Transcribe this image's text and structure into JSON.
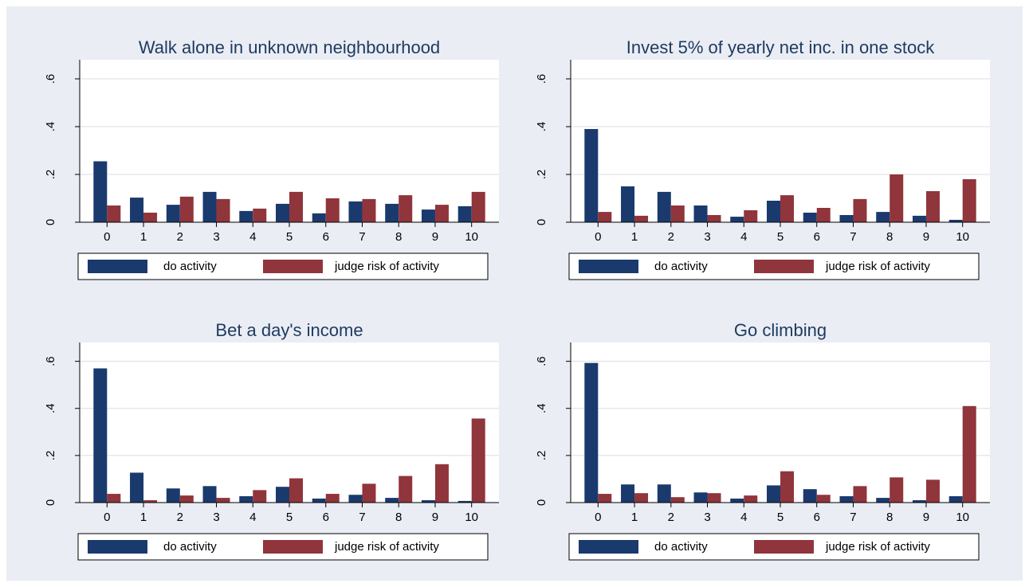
{
  "chart_data": [
    {
      "type": "bar",
      "title": "Walk alone in unknown neighbourhood",
      "categories": [
        "0",
        "1",
        "2",
        "3",
        "4",
        "5",
        "6",
        "7",
        "8",
        "9",
        "10"
      ],
      "series": [
        {
          "name": "do activity",
          "color": "#1a3a6e",
          "values": [
            0.255,
            0.103,
            0.073,
            0.127,
            0.047,
            0.077,
            0.037,
            0.087,
            0.077,
            0.053,
            0.067
          ]
        },
        {
          "name": "judge risk of activity",
          "color": "#90353b",
          "values": [
            0.07,
            0.04,
            0.107,
            0.097,
            0.057,
            0.127,
            0.1,
            0.097,
            0.113,
            0.073,
            0.127
          ]
        }
      ],
      "ylim": [
        0,
        0.68
      ],
      "yticks": [
        0,
        {
          "value": 0.2,
          "label": ".2"
        },
        {
          "value": 0.4,
          "label": ".4"
        },
        {
          "value": 0.6,
          "label": ".6"
        }
      ],
      "grid": true,
      "legend": "bottom"
    },
    {
      "type": "bar",
      "title": "Invest 5% of yearly net inc. in one stock",
      "categories": [
        "0",
        "1",
        "2",
        "3",
        "4",
        "5",
        "6",
        "7",
        "8",
        "9",
        "10"
      ],
      "series": [
        {
          "name": "do activity",
          "color": "#1a3a6e",
          "values": [
            0.39,
            0.15,
            0.127,
            0.07,
            0.023,
            0.09,
            0.04,
            0.03,
            0.043,
            0.027,
            0.01
          ]
        },
        {
          "name": "judge risk of activity",
          "color": "#90353b",
          "values": [
            0.043,
            0.027,
            0.07,
            0.03,
            0.05,
            0.113,
            0.06,
            0.097,
            0.2,
            0.13,
            0.18
          ]
        }
      ],
      "ylim": [
        0,
        0.68
      ],
      "yticks": [
        0,
        {
          "value": 0.2,
          "label": ".2"
        },
        {
          "value": 0.4,
          "label": ".4"
        },
        {
          "value": 0.6,
          "label": ".6"
        }
      ],
      "grid": true,
      "legend": "bottom"
    },
    {
      "type": "bar",
      "title": "Bet a day's income",
      "categories": [
        "0",
        "1",
        "2",
        "3",
        "4",
        "5",
        "6",
        "7",
        "8",
        "9",
        "10"
      ],
      "series": [
        {
          "name": "do activity",
          "color": "#1a3a6e",
          "values": [
            0.57,
            0.127,
            0.06,
            0.07,
            0.027,
            0.067,
            0.017,
            0.033,
            0.02,
            0.01,
            0.007
          ]
        },
        {
          "name": "judge risk of activity",
          "color": "#90353b",
          "values": [
            0.037,
            0.01,
            0.03,
            0.02,
            0.053,
            0.103,
            0.037,
            0.08,
            0.113,
            0.163,
            0.357
          ]
        }
      ],
      "ylim": [
        0,
        0.68
      ],
      "yticks": [
        0,
        {
          "value": 0.2,
          "label": ".2"
        },
        {
          "value": 0.4,
          "label": ".4"
        },
        {
          "value": 0.6,
          "label": ".6"
        }
      ],
      "grid": true,
      "legend": "bottom"
    },
    {
      "type": "bar",
      "title": "Go climbing",
      "categories": [
        "0",
        "1",
        "2",
        "3",
        "4",
        "5",
        "6",
        "7",
        "8",
        "9",
        "10"
      ],
      "series": [
        {
          "name": "do activity",
          "color": "#1a3a6e",
          "values": [
            0.593,
            0.077,
            0.077,
            0.043,
            0.017,
            0.073,
            0.057,
            0.027,
            0.02,
            0.01,
            0.027
          ]
        },
        {
          "name": "judge risk of activity",
          "color": "#90353b",
          "values": [
            0.037,
            0.04,
            0.023,
            0.04,
            0.03,
            0.133,
            0.033,
            0.07,
            0.107,
            0.097,
            0.41
          ]
        }
      ],
      "ylim": [
        0,
        0.68
      ],
      "yticks": [
        0,
        {
          "value": 0.2,
          "label": ".2"
        },
        {
          "value": 0.4,
          "label": ".4"
        },
        {
          "value": 0.6,
          "label": ".6"
        }
      ],
      "grid": true,
      "legend": "bottom"
    }
  ]
}
